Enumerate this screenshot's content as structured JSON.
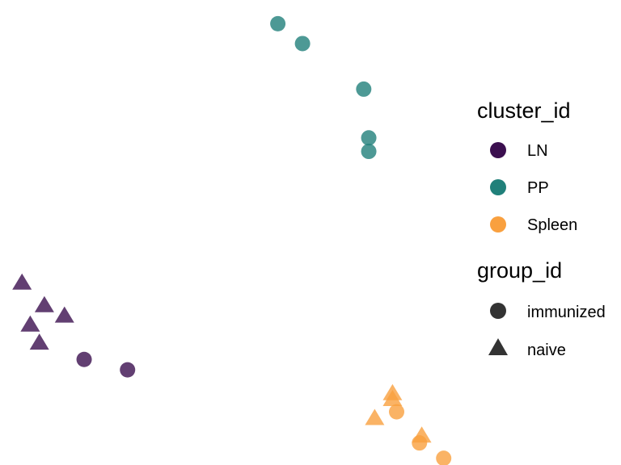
{
  "chart_data": {
    "type": "scatter",
    "title": "",
    "xlabel": "",
    "ylabel": "",
    "grid": false,
    "axes_visible": false,
    "xlim": [
      0,
      100
    ],
    "ylim": [
      0,
      100
    ],
    "legend_placement": "right",
    "legends": [
      {
        "title": "cluster_id",
        "kind": "color",
        "entries": [
          {
            "label": "LN",
            "color": "#3b0f4f"
          },
          {
            "label": "PP",
            "color": "#20807a"
          },
          {
            "label": "Spleen",
            "color": "#f9a03f"
          }
        ]
      },
      {
        "title": "group_id",
        "kind": "shape",
        "entries": [
          {
            "label": "immunized",
            "shape": "circle",
            "color": "#333333"
          },
          {
            "label": "naive",
            "shape": "triangle",
            "color": "#333333"
          }
        ]
      }
    ],
    "point_opacity": 0.8,
    "points": [
      {
        "x": 59.4,
        "y": 96.0,
        "cluster": "PP",
        "group": "immunized"
      },
      {
        "x": 64.8,
        "y": 91.6,
        "cluster": "PP",
        "group": "immunized"
      },
      {
        "x": 78.2,
        "y": 81.5,
        "cluster": "PP",
        "group": "immunized"
      },
      {
        "x": 79.3,
        "y": 70.7,
        "cluster": "PP",
        "group": "immunized"
      },
      {
        "x": 79.3,
        "y": 67.7,
        "cluster": "PP",
        "group": "immunized"
      },
      {
        "x": 3.4,
        "y": 38.5,
        "cluster": "LN",
        "group": "naive"
      },
      {
        "x": 8.3,
        "y": 33.5,
        "cluster": "LN",
        "group": "naive"
      },
      {
        "x": 12.7,
        "y": 31.2,
        "cluster": "LN",
        "group": "naive"
      },
      {
        "x": 5.2,
        "y": 29.2,
        "cluster": "LN",
        "group": "naive"
      },
      {
        "x": 7.2,
        "y": 25.2,
        "cluster": "LN",
        "group": "naive"
      },
      {
        "x": 17.0,
        "y": 21.6,
        "cluster": "LN",
        "group": "immunized"
      },
      {
        "x": 26.5,
        "y": 19.3,
        "cluster": "LN",
        "group": "immunized"
      },
      {
        "x": 84.5,
        "y": 14.0,
        "cluster": "Spleen",
        "group": "naive"
      },
      {
        "x": 84.5,
        "y": 12.7,
        "cluster": "Spleen",
        "group": "naive"
      },
      {
        "x": 85.4,
        "y": 10.0,
        "cluster": "Spleen",
        "group": "immunized"
      },
      {
        "x": 80.6,
        "y": 8.5,
        "cluster": "Spleen",
        "group": "naive"
      },
      {
        "x": 90.9,
        "y": 4.6,
        "cluster": "Spleen",
        "group": "naive"
      },
      {
        "x": 90.4,
        "y": 3.1,
        "cluster": "Spleen",
        "group": "immunized"
      },
      {
        "x": 95.7,
        "y": -0.3,
        "cluster": "Spleen",
        "group": "immunized"
      }
    ]
  }
}
